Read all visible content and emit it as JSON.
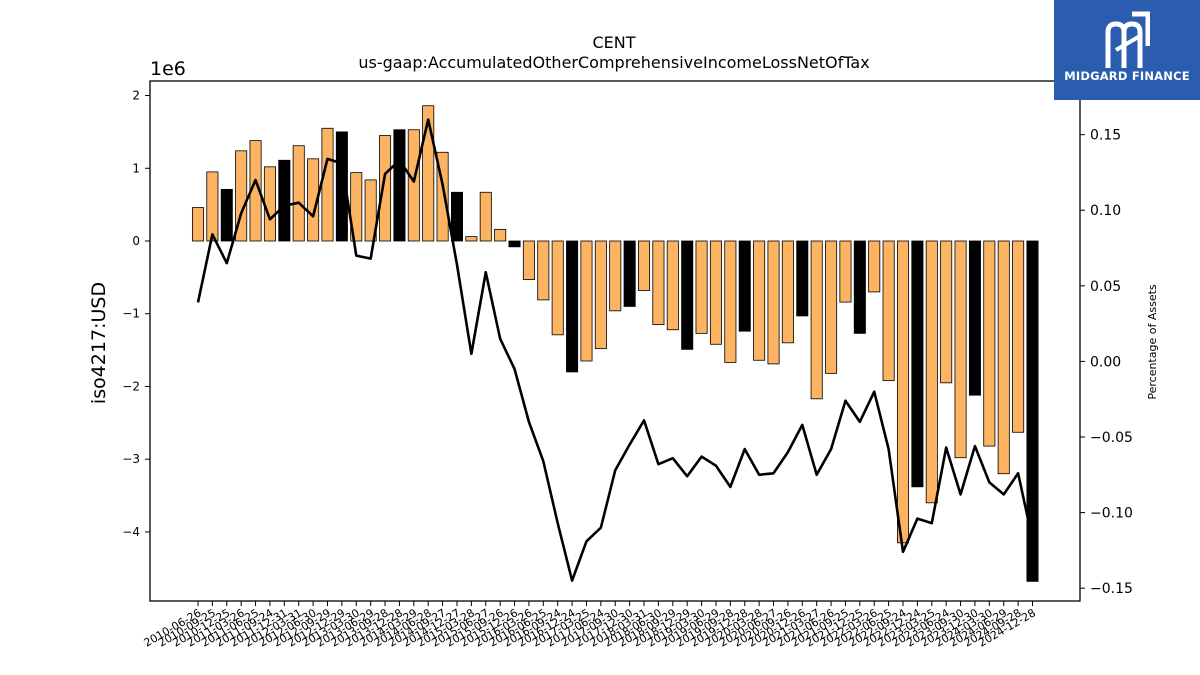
{
  "brand": {
    "name": "MIDGARD FINANCE",
    "bg_color": "#2a5db0",
    "icon": "midgard-logo-icon"
  },
  "chart_data": {
    "type": "bar+line",
    "title": "CENT",
    "subtitle": "us-gaap:AccumulatedOtherComprehensiveIncomeLossNetOfTax",
    "ylabel": "iso4217:USD",
    "y_offset_label": "1e6",
    "y2label": "Percentage of Assets",
    "ylim": [
      -4.95,
      2.2
    ],
    "y2lim": [
      -0.1585,
      0.1855
    ],
    "yticks": [
      2,
      1,
      0,
      -1,
      -2,
      -3,
      -4
    ],
    "ytick_labels": [
      "2",
      "1",
      "0",
      "−1",
      "−2",
      "−3",
      "−4"
    ],
    "y2ticks": [
      0.15,
      0.1,
      0.05,
      0.0,
      -0.05,
      -0.1,
      -0.15
    ],
    "y2tick_labels": [
      "0.15",
      "0.10",
      "0.05",
      "0.00",
      "−0.05",
      "−0.10",
      "−0.15"
    ],
    "colors": {
      "annual": "#000000",
      "quarterly": "#fdb462",
      "line": "#000000"
    },
    "categories": [
      "2010-06-26",
      "2010-09-25",
      "2010-12-25",
      "2011-03-26",
      "2011-06-25",
      "2011-09-24",
      "2011-12-31",
      "2012-03-31",
      "2012-06-30",
      "2012-09-29",
      "2012-12-29",
      "2013-03-30",
      "2013-06-29",
      "2013-09-28",
      "2013-12-28",
      "2014-03-29",
      "2014-06-28",
      "2014-09-27",
      "2014-12-27",
      "2015-03-28",
      "2015-06-27",
      "2015-09-26",
      "2015-12-26",
      "2016-03-26",
      "2016-06-25",
      "2016-09-24",
      "2016-12-24",
      "2017-03-25",
      "2017-06-24",
      "2017-09-30",
      "2017-12-30",
      "2018-03-31",
      "2018-06-30",
      "2018-09-29",
      "2018-12-29",
      "2019-03-30",
      "2019-06-29",
      "2019-09-28",
      "2019-12-28",
      "2020-03-28",
      "2020-06-27",
      "2020-09-26",
      "2020-12-26",
      "2021-03-27",
      "2021-06-26",
      "2021-09-25",
      "2021-12-25",
      "2022-03-26",
      "2022-06-25",
      "2022-09-24",
      "2022-12-24",
      "2023-03-25",
      "2023-06-24",
      "2023-09-30",
      "2023-12-30",
      "2024-03-30",
      "2024-06-29",
      "2024-09-28",
      "2024-12-28"
    ],
    "series": [
      {
        "kind": "bar",
        "values": [
          0.46,
          0.95,
          0.71,
          1.24,
          1.38,
          1.02,
          1.11,
          1.31,
          1.13,
          1.55,
          1.5,
          0.94,
          0.84,
          1.45,
          1.53,
          1.53,
          1.86,
          1.22,
          0.67,
          0.06,
          0.67,
          0.16,
          -0.08,
          -0.53,
          -0.81,
          -1.29,
          -1.8,
          -1.65,
          -1.48,
          -0.96,
          -0.9,
          -0.68,
          -1.15,
          -1.22,
          -1.49,
          -1.27,
          -1.42,
          -1.67,
          -1.24,
          -1.64,
          -1.69,
          -1.4,
          -1.03,
          -2.17,
          -1.82,
          -0.84,
          -1.27,
          -0.7,
          -1.92,
          -4.15,
          -3.38,
          -3.6,
          -1.95,
          -2.98,
          -2.12,
          -2.82,
          -3.2,
          -2.63,
          -4.68
        ],
        "annual": [
          false,
          false,
          true,
          false,
          false,
          false,
          true,
          false,
          false,
          false,
          true,
          false,
          false,
          false,
          true,
          false,
          false,
          false,
          true,
          false,
          false,
          false,
          true,
          false,
          false,
          false,
          true,
          false,
          false,
          false,
          true,
          false,
          false,
          false,
          true,
          false,
          false,
          false,
          true,
          false,
          false,
          false,
          true,
          false,
          false,
          false,
          true,
          false,
          false,
          false,
          true,
          false,
          false,
          false,
          true,
          false,
          false,
          false,
          true
        ]
      },
      {
        "kind": "line",
        "axis": "right",
        "values": [
          0.039,
          0.084,
          0.065,
          0.098,
          0.12,
          0.094,
          0.103,
          0.105,
          0.096,
          0.134,
          0.131,
          0.07,
          0.068,
          0.124,
          0.133,
          0.119,
          0.16,
          0.117,
          0.064,
          0.005,
          0.059,
          0.015,
          -0.005,
          -0.04,
          -0.066,
          -0.107,
          -0.145,
          -0.119,
          -0.11,
          -0.072,
          -0.055,
          -0.039,
          -0.068,
          -0.064,
          -0.076,
          -0.063,
          -0.069,
          -0.083,
          -0.058,
          -0.075,
          -0.074,
          -0.06,
          -0.042,
          -0.075,
          -0.058,
          -0.026,
          -0.04,
          -0.02,
          -0.058,
          -0.126,
          -0.104,
          -0.107,
          -0.057,
          -0.088,
          -0.056,
          -0.08,
          -0.088,
          -0.074,
          -0.118
        ]
      }
    ]
  }
}
